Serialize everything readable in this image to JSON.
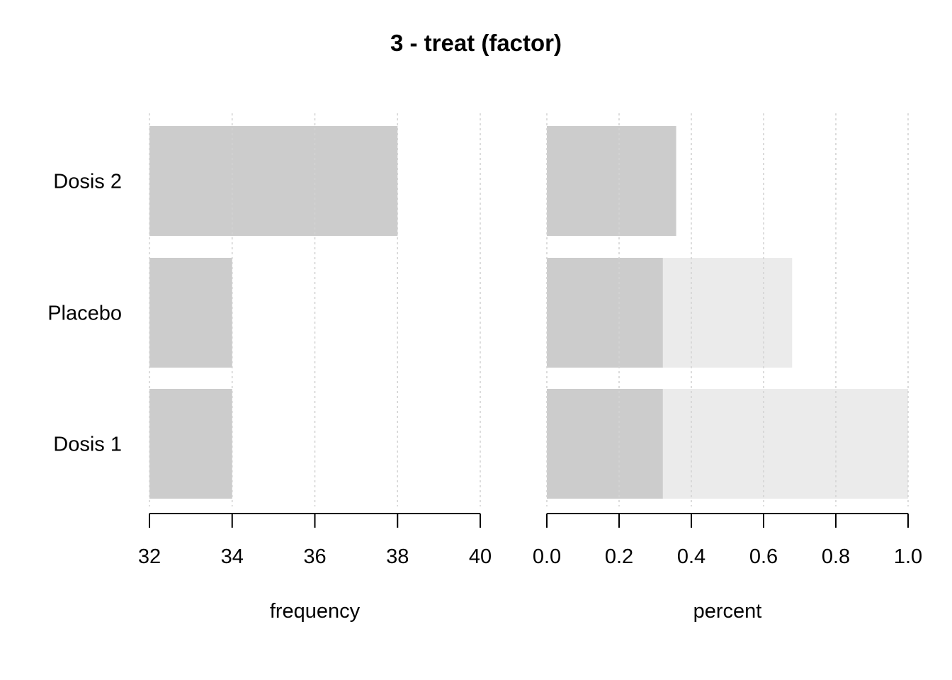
{
  "chart_data": {
    "title": "3 - treat (factor)",
    "categories": [
      "Dosis 2",
      "Placebo",
      "Dosis 1"
    ],
    "panels": [
      {
        "type": "bar",
        "orientation": "horizontal",
        "xlabel": "frequency",
        "xlim": [
          32,
          40
        ],
        "ticks": [
          32,
          34,
          36,
          38,
          40
        ],
        "tick_labels": [
          "32",
          "34",
          "36",
          "38",
          "40"
        ],
        "grid": true,
        "values": [
          38,
          34,
          34
        ],
        "color": "#cccccc"
      },
      {
        "type": "bar",
        "orientation": "horizontal",
        "xlabel": "percent",
        "xlim": [
          0,
          1
        ],
        "ticks": [
          0,
          0.2,
          0.4,
          0.6,
          0.8,
          1.0
        ],
        "tick_labels": [
          "0.0",
          "0.2",
          "0.4",
          "0.6",
          "0.8",
          "1.0"
        ],
        "grid": true,
        "values": [
          0.358,
          0.321,
          0.321
        ],
        "cumulative": [
          0.358,
          0.679,
          1.0
        ],
        "color": "#cccccc",
        "cumulative_color": "#ebebeb"
      }
    ]
  }
}
